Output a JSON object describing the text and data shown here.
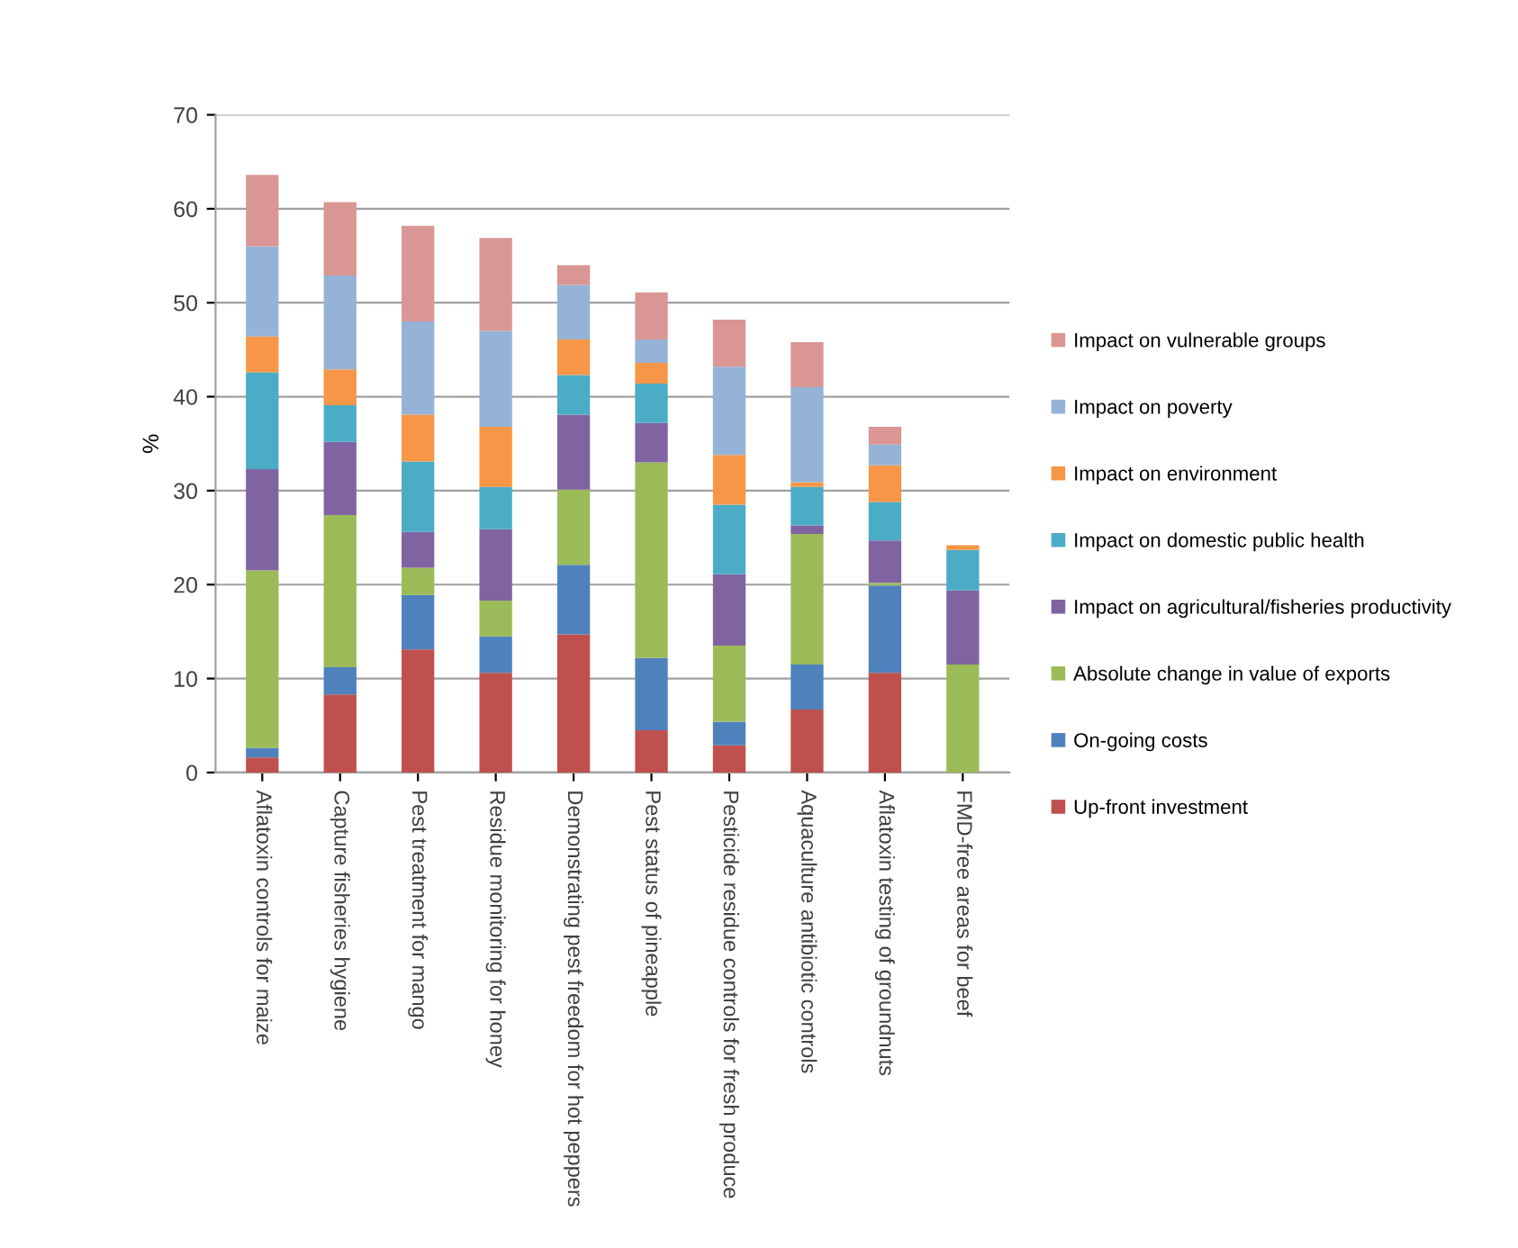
{
  "chart_data": {
    "type": "bar",
    "stacked": true,
    "ylabel": "%",
    "categories": [
      "Aflatoxin controls for maize",
      "Capture fisheries hygiene",
      "Pest treatment for mango",
      "Residue monitoring for honey",
      "Demonstrating pest freedom for hot peppers",
      "Pest status of pineapple",
      "Pesticide residue controls for fresh produce",
      "Aquaculture antibiotic controls",
      "Aflatoxin testing of groundnuts",
      "FMD-free areas for beef"
    ],
    "series": [
      {
        "name": "Up-front investment",
        "color": "#c0504d",
        "values": [
          1.6,
          8.3,
          13.1,
          10.6,
          14.7,
          4.5,
          2.9,
          6.7,
          10.6,
          0
        ]
      },
      {
        "name": "On-going costs",
        "color": "#4f81bd",
        "values": [
          1.0,
          2.9,
          5.8,
          3.9,
          7.4,
          7.7,
          2.5,
          4.8,
          9.3,
          0
        ]
      },
      {
        "name": "Absolute change in value of exports",
        "color": "#9bbb59",
        "values": [
          18.9,
          16.2,
          2.9,
          3.8,
          8.0,
          20.8,
          8.1,
          13.9,
          0.3,
          11.5
        ]
      },
      {
        "name": "Impact on agricultural/fisheries productivity",
        "color": "#8064a2",
        "values": [
          10.8,
          7.8,
          3.8,
          7.6,
          8.0,
          4.2,
          7.6,
          0.9,
          4.5,
          7.9
        ]
      },
      {
        "name": "Impact on domestic public health",
        "color": "#4bacc6",
        "values": [
          10.3,
          3.9,
          7.5,
          4.5,
          4.2,
          4.2,
          7.4,
          4.1,
          4.1,
          4.3
        ]
      },
      {
        "name": "Impact on environment",
        "color": "#f79646",
        "values": [
          3.8,
          3.8,
          5.0,
          6.4,
          3.8,
          2.2,
          5.3,
          0.5,
          3.9,
          0.5
        ]
      },
      {
        "name": "Impact on poverty",
        "color": "#95b3d7",
        "values": [
          9.6,
          10.0,
          9.9,
          10.2,
          5.8,
          2.5,
          9.4,
          10.1,
          2.2,
          0
        ]
      },
      {
        "name": "Impact on vulnerable groups",
        "color": "#d99694",
        "values": [
          7.6,
          7.8,
          10.2,
          9.9,
          2.1,
          5.0,
          5.0,
          4.8,
          1.9,
          0
        ]
      }
    ],
    "ylim": [
      0,
      70
    ],
    "yticks": [
      0,
      10,
      20,
      30,
      40,
      50,
      60,
      70
    ],
    "grid": "y",
    "legend": "right"
  }
}
